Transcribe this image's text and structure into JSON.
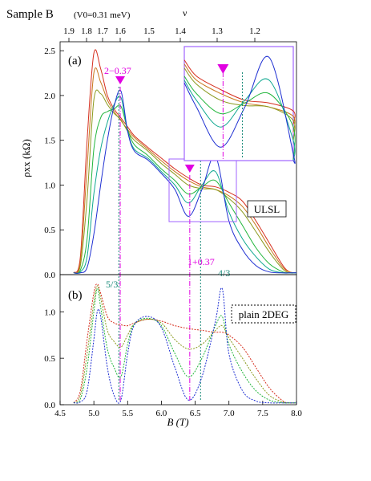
{
  "figure": {
    "sample_label": "Sample B",
    "condition": "(V0=0.31 meV)",
    "top_axis_label": "ν",
    "top_ticks": [
      "1.9",
      "1.8",
      "1.7",
      "1.6",
      "1.5",
      "1.4",
      "1.3",
      "1.2"
    ],
    "colors": {
      "red": "#d62f1f",
      "orange": "#c8781e",
      "green": "#22b63c",
      "blue": "#1e2fd2",
      "magenta": "#e100e1",
      "teal": "#1a8b7a",
      "box": "#a064ff"
    }
  },
  "chart_data": [
    {
      "panel": "(a)",
      "type": "line",
      "ylabel": "ρxx (kΩ)",
      "ylim": [
        0,
        2.6
      ],
      "xlim": [
        4.5,
        8.0
      ],
      "yticks": [
        "0.0",
        "0.5",
        "1.0",
        "1.5",
        "2.0",
        "2.5"
      ],
      "annotations": {
        "arrow1": "2−0.37",
        "arrow2": "1+0.37",
        "frac1": "5/3",
        "frac2": "4/3",
        "box_label": "ULSL"
      },
      "markers_x": {
        "arrow1": 5.39,
        "arrow2": 6.42,
        "frac1": 5.37,
        "frac2": 6.58
      },
      "series": [
        {
          "color": "#d62f1f",
          "x": [
            4.7,
            4.8,
            4.9,
            5.0,
            5.1,
            5.2,
            5.3,
            5.4,
            5.5,
            5.6,
            5.8,
            6.0,
            6.2,
            6.4,
            6.6,
            6.8,
            7.0,
            7.2,
            7.4,
            7.6,
            7.8,
            7.9,
            8.0
          ],
          "y": [
            0.02,
            0.2,
            1.5,
            2.47,
            2.3,
            2.0,
            1.85,
            1.75,
            1.65,
            1.55,
            1.42,
            1.3,
            1.18,
            1.08,
            1.0,
            0.98,
            0.92,
            0.82,
            0.6,
            0.35,
            0.1,
            0.03,
            0.02
          ]
        },
        {
          "color": "#c8781e",
          "x": [
            4.7,
            4.8,
            4.9,
            5.0,
            5.1,
            5.2,
            5.3,
            5.4,
            5.5,
            5.6,
            5.8,
            6.0,
            6.2,
            6.4,
            6.6,
            6.8,
            7.0,
            7.2,
            7.4,
            7.6,
            7.8,
            7.9,
            8.0
          ],
          "y": [
            0.02,
            0.15,
            1.2,
            2.25,
            2.15,
            1.95,
            1.82,
            1.72,
            1.62,
            1.53,
            1.4,
            1.27,
            1.15,
            1.05,
            0.98,
            0.95,
            0.88,
            0.76,
            0.55,
            0.3,
            0.08,
            0.03,
            0.02
          ]
        },
        {
          "color": "#8a9a1e",
          "x": [
            4.7,
            4.8,
            4.9,
            5.0,
            5.1,
            5.2,
            5.3,
            5.4,
            5.5,
            5.6,
            5.8,
            6.0,
            6.2,
            6.4,
            6.6,
            6.8,
            7.0,
            7.2,
            7.4,
            7.6,
            7.8,
            7.9,
            8.0
          ],
          "y": [
            0.02,
            0.1,
            0.85,
            1.95,
            2.02,
            1.9,
            1.8,
            1.73,
            1.6,
            1.5,
            1.38,
            1.24,
            1.12,
            1.0,
            0.96,
            0.95,
            0.85,
            0.7,
            0.48,
            0.25,
            0.06,
            0.02,
            0.02
          ]
        },
        {
          "color": "#22b63c",
          "x": [
            4.7,
            4.8,
            4.9,
            5.0,
            5.1,
            5.2,
            5.3,
            5.4,
            5.5,
            5.6,
            5.8,
            6.0,
            6.2,
            6.4,
            6.6,
            6.8,
            7.0,
            7.2,
            7.4,
            7.6,
            7.8,
            7.9,
            8.0
          ],
          "y": [
            0.02,
            0.05,
            0.4,
            1.4,
            1.75,
            1.82,
            1.85,
            1.88,
            1.62,
            1.45,
            1.33,
            1.18,
            1.05,
            0.9,
            0.98,
            1.05,
            0.8,
            0.55,
            0.3,
            0.12,
            0.03,
            0.02,
            0.02
          ]
        },
        {
          "color": "#0fa890",
          "x": [
            4.7,
            4.8,
            4.9,
            5.0,
            5.1,
            5.2,
            5.3,
            5.4,
            5.5,
            5.6,
            5.8,
            6.0,
            6.2,
            6.4,
            6.6,
            6.8,
            7.0,
            7.2,
            7.4,
            7.6,
            7.8,
            7.9,
            8.0
          ],
          "y": [
            0.02,
            0.03,
            0.2,
            0.9,
            1.4,
            1.7,
            1.9,
            1.98,
            1.6,
            1.4,
            1.3,
            1.15,
            1.0,
            0.8,
            1.0,
            1.15,
            0.7,
            0.4,
            0.2,
            0.06,
            0.02,
            0.02,
            0.02
          ]
        },
        {
          "color": "#1e2fd2",
          "x": [
            4.7,
            4.8,
            4.9,
            5.0,
            5.1,
            5.2,
            5.3,
            5.4,
            5.5,
            5.6,
            5.8,
            6.0,
            6.2,
            6.4,
            6.6,
            6.8,
            7.0,
            7.2,
            7.4,
            7.6,
            7.8,
            7.9,
            8.0
          ],
          "y": [
            0.02,
            0.02,
            0.08,
            0.45,
            1.0,
            1.5,
            1.88,
            2.05,
            1.6,
            1.38,
            1.28,
            1.13,
            0.95,
            0.65,
            0.95,
            1.32,
            0.6,
            0.28,
            0.1,
            0.03,
            0.02,
            0.02,
            0.02
          ]
        }
      ]
    },
    {
      "panel": "(b)",
      "type": "line",
      "ylabel": "",
      "ylim": [
        0,
        1.4
      ],
      "xlim": [
        4.5,
        8.0
      ],
      "yticks": [
        "0.0",
        "0.5",
        "1.0"
      ],
      "xticks": [
        "4.5",
        "5.0",
        "5.5",
        "6.0",
        "6.5",
        "7.0",
        "7.5",
        "8.0"
      ],
      "xlabel": "B (T)",
      "box_label": "plain 2DEG",
      "series": [
        {
          "color": "#d62f1f",
          "x": [
            4.7,
            4.8,
            4.9,
            5.0,
            5.05,
            5.1,
            5.2,
            5.3,
            5.4,
            5.5,
            5.6,
            5.8,
            6.0,
            6.2,
            6.4,
            6.6,
            6.8,
            6.9,
            7.0,
            7.2,
            7.4,
            7.6,
            7.8,
            7.9,
            8.0
          ],
          "y": [
            0.02,
            0.15,
            0.7,
            1.2,
            1.3,
            1.2,
            0.95,
            0.88,
            0.86,
            0.85,
            0.88,
            0.92,
            0.9,
            0.85,
            0.82,
            0.8,
            0.78,
            0.78,
            0.75,
            0.62,
            0.4,
            0.18,
            0.04,
            0.02,
            0.02
          ]
        },
        {
          "color": "#8a9a1e",
          "x": [
            4.7,
            4.8,
            4.9,
            5.0,
            5.05,
            5.1,
            5.2,
            5.3,
            5.4,
            5.5,
            5.6,
            5.8,
            6.0,
            6.2,
            6.4,
            6.6,
            6.8,
            6.9,
            7.0,
            7.2,
            7.4,
            7.6,
            7.8,
            7.9,
            8.0
          ],
          "y": [
            0.02,
            0.1,
            0.55,
            1.1,
            1.28,
            1.15,
            0.8,
            0.68,
            0.62,
            0.75,
            0.87,
            0.92,
            0.88,
            0.7,
            0.6,
            0.65,
            0.8,
            0.85,
            0.72,
            0.5,
            0.28,
            0.1,
            0.03,
            0.02,
            0.02
          ]
        },
        {
          "color": "#22b63c",
          "x": [
            4.7,
            4.8,
            4.9,
            5.0,
            5.05,
            5.1,
            5.2,
            5.3,
            5.4,
            5.5,
            5.6,
            5.8,
            6.0,
            6.2,
            6.4,
            6.6,
            6.8,
            6.9,
            7.0,
            7.2,
            7.4,
            7.6,
            7.8,
            7.9,
            8.0
          ],
          "y": [
            0.02,
            0.06,
            0.4,
            1.0,
            1.25,
            1.05,
            0.6,
            0.4,
            0.3,
            0.65,
            0.87,
            0.93,
            0.85,
            0.55,
            0.3,
            0.5,
            0.85,
            0.95,
            0.65,
            0.35,
            0.15,
            0.05,
            0.02,
            0.02,
            0.02
          ]
        },
        {
          "color": "#1e2fd2",
          "x": [
            4.7,
            4.8,
            4.9,
            5.0,
            5.05,
            5.1,
            5.2,
            5.3,
            5.4,
            5.5,
            5.6,
            5.8,
            6.0,
            6.2,
            6.4,
            6.6,
            6.8,
            6.9,
            7.0,
            7.2,
            7.4,
            7.6,
            7.8,
            7.9,
            8.0
          ],
          "y": [
            0.02,
            0.03,
            0.15,
            0.7,
            1.0,
            0.95,
            0.4,
            0.1,
            0.05,
            0.55,
            0.86,
            0.95,
            0.83,
            0.4,
            0.05,
            0.3,
            0.9,
            1.25,
            0.55,
            0.15,
            0.04,
            0.02,
            0.02,
            0.02,
            0.02
          ]
        }
      ]
    }
  ]
}
